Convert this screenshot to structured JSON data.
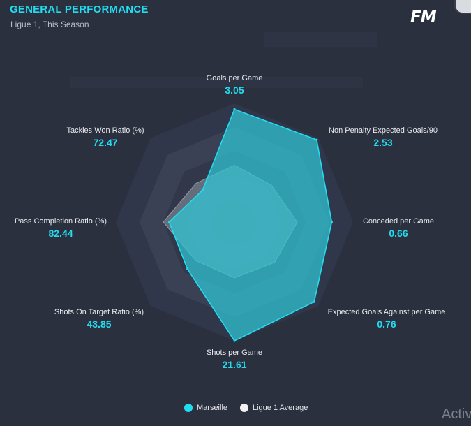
{
  "header": {
    "title": "GENERAL PERFORMANCE",
    "subtitle": "Ligue 1, This Season",
    "logo_text": "FM"
  },
  "colors": {
    "accent": "#22dcef",
    "marseille_fill": "#2fc6d6",
    "average_fill": "#b9c4cf",
    "background": "#2b303f"
  },
  "chart_data": {
    "type": "radar",
    "axes": [
      {
        "label": "Goals per Game",
        "value": "3.05",
        "marseille": 0.95,
        "average": 0.48
      },
      {
        "label": "Non Penalty Expected Goals/90",
        "value": "2.53",
        "marseille": 0.98,
        "average": 0.44
      },
      {
        "label": "Conceded per Game",
        "value": "0.66",
        "marseille": 0.82,
        "average": 0.53
      },
      {
        "label": "Expected Goals Against per Game",
        "value": "0.76",
        "marseille": 0.95,
        "average": 0.48
      },
      {
        "label": "Shots per Game",
        "value": "21.61",
        "marseille": 1.0,
        "average": 0.47
      },
      {
        "label": "Shots On Target Ratio (%)",
        "value": "43.85",
        "marseille": 0.56,
        "average": 0.46
      },
      {
        "label": "Pass Completion Ratio (%)",
        "value": "82.44",
        "marseille": 0.55,
        "average": 0.6
      },
      {
        "label": "Tackles Won Ratio (%)",
        "value": "72.47",
        "marseille": 0.38,
        "average": 0.46
      }
    ],
    "series": [
      {
        "name": "Marseille"
      },
      {
        "name": "Ligue 1 Average"
      }
    ]
  },
  "legend": {
    "marseille": "Marseille",
    "average": "Ligue 1 Average"
  },
  "watermark": "Activ"
}
